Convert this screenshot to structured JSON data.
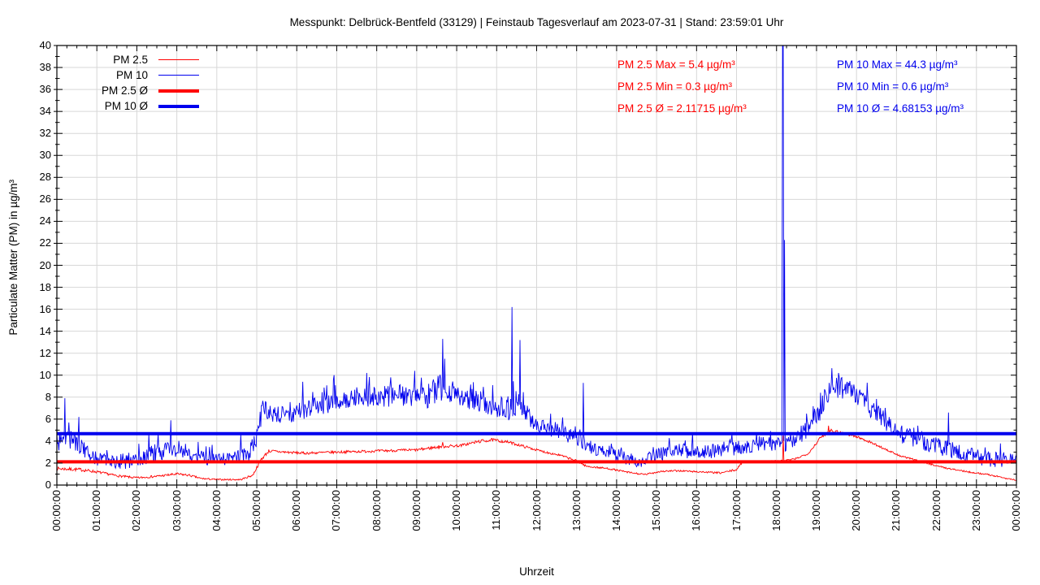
{
  "title": "Messpunkt: Delbrück-Bentfeld (33129) | Feinstaub Tagesverlauf am 2023-07-31 | Stand: 23:59:01 Uhr",
  "legend": [
    {
      "label": "PM 2.5",
      "color": "#ff0000",
      "thickness": 1.5
    },
    {
      "label": "PM 10",
      "color": "#0000ee",
      "thickness": 1.5
    },
    {
      "label": "PM 2.5 Ø",
      "color": "#ff0000",
      "thickness": 4
    },
    {
      "label": "PM 10 Ø",
      "color": "#0000ee",
      "thickness": 4
    }
  ],
  "stats_left": {
    "color": "#ff0000",
    "lines": [
      "PM 2.5 Max = 5.4 µg/m³",
      "PM 2.5 Min = 0.3 µg/m³",
      "PM 2.5 Ø = 2.11715 µg/m³"
    ]
  },
  "stats_right": {
    "color": "#0000ee",
    "lines": [
      "PM 10 Max = 44.3 µg/m³",
      "PM 10 Min = 0.6 µg/m³",
      "PM 10 Ø = 4.68153 µg/m³"
    ]
  },
  "chart_data": {
    "type": "line",
    "title": "Messpunkt: Delbrück-Bentfeld (33129) | Feinstaub Tagesverlauf am 2023-07-31 | Stand: 23:59:01 Uhr",
    "xlabel": "Uhrzeit",
    "ylabel": "Particulate Matter (PM) in µg/m³",
    "ylim": [
      0,
      40
    ],
    "ytick_step": 2,
    "ytick_values": [
      0,
      2,
      4,
      6,
      8,
      10,
      12,
      14,
      16,
      18,
      20,
      22,
      24,
      26,
      28,
      30,
      32,
      34,
      36,
      38,
      40
    ],
    "xlim_hours": [
      0,
      24
    ],
    "xtick_labels": [
      "00:00:00",
      "01:00:00",
      "02:00:00",
      "03:00:00",
      "04:00:00",
      "05:00:00",
      "06:00:00",
      "07:00:00",
      "08:00:00",
      "09:00:00",
      "10:00:00",
      "11:00:00",
      "12:00:00",
      "13:00:00",
      "14:00:00",
      "15:00:00",
      "16:00:00",
      "17:00:00",
      "18:00:00",
      "19:00:00",
      "20:00:00",
      "21:00:00",
      "22:00:00",
      "23:00:00",
      "00:00:00"
    ],
    "grid": true,
    "legend_position": "top-left",
    "stats": {
      "pm25": {
        "max": 5.4,
        "min": 0.3,
        "avg": 2.11715,
        "unit": "µg/m³"
      },
      "pm10": {
        "max": 44.3,
        "min": 0.6,
        "avg": 4.68153,
        "unit": "µg/m³"
      }
    },
    "averages": [
      {
        "name": "PM 2.5 Ø",
        "value": 2.11715,
        "color": "#ff0000"
      },
      {
        "name": "PM 10 Ø",
        "value": 4.68153,
        "color": "#0000ee"
      }
    ],
    "series": [
      {
        "name": "PM 2.5",
        "color": "#ff0000",
        "style": "noisy-minute-data",
        "keyframes_hour_base_noise": [
          [
            0.0,
            1.5,
            0.15
          ],
          [
            0.6,
            1.4,
            0.15
          ],
          [
            1.0,
            1.2,
            0.12
          ],
          [
            1.5,
            0.85,
            0.1
          ],
          [
            2.0,
            0.65,
            0.1
          ],
          [
            2.5,
            0.8,
            0.1
          ],
          [
            3.0,
            1.0,
            0.12
          ],
          [
            3.3,
            0.9,
            0.1
          ],
          [
            3.6,
            0.6,
            0.08
          ],
          [
            4.0,
            0.5,
            0.07
          ],
          [
            4.6,
            0.5,
            0.07
          ],
          [
            4.9,
            0.9,
            0.1
          ],
          [
            5.1,
            2.3,
            0.15
          ],
          [
            5.3,
            3.1,
            0.15
          ],
          [
            5.7,
            3.0,
            0.12
          ],
          [
            6.2,
            2.9,
            0.12
          ],
          [
            7.0,
            3.0,
            0.12
          ],
          [
            8.0,
            3.1,
            0.12
          ],
          [
            9.0,
            3.2,
            0.12
          ],
          [
            9.6,
            3.5,
            0.15
          ],
          [
            10.1,
            3.6,
            0.12
          ],
          [
            10.6,
            4.0,
            0.15
          ],
          [
            10.9,
            4.1,
            0.15
          ],
          [
            11.3,
            3.9,
            0.12
          ],
          [
            11.7,
            3.5,
            0.12
          ],
          [
            12.1,
            3.1,
            0.1
          ],
          [
            12.6,
            2.7,
            0.1
          ],
          [
            13.0,
            2.2,
            0.1
          ],
          [
            13.25,
            1.7,
            0.08
          ],
          [
            13.8,
            1.5,
            0.08
          ],
          [
            14.3,
            1.15,
            0.08
          ],
          [
            14.7,
            0.95,
            0.08
          ],
          [
            15.1,
            1.25,
            0.08
          ],
          [
            15.6,
            1.3,
            0.08
          ],
          [
            16.1,
            1.2,
            0.08
          ],
          [
            16.6,
            1.1,
            0.08
          ],
          [
            17.0,
            1.4,
            0.1
          ],
          [
            17.15,
            2.1,
            0.08
          ],
          [
            17.6,
            2.15,
            0.07
          ],
          [
            18.1,
            2.2,
            0.07
          ],
          [
            18.45,
            2.35,
            0.08
          ],
          [
            18.8,
            2.9,
            0.1
          ],
          [
            19.1,
            4.3,
            0.15
          ],
          [
            19.35,
            5.0,
            0.15
          ],
          [
            19.7,
            4.7,
            0.12
          ],
          [
            20.0,
            4.4,
            0.12
          ],
          [
            20.35,
            3.9,
            0.1
          ],
          [
            20.7,
            3.3,
            0.1
          ],
          [
            21.05,
            2.7,
            0.08
          ],
          [
            21.4,
            2.35,
            0.08
          ],
          [
            21.8,
            1.95,
            0.08
          ],
          [
            22.3,
            1.5,
            0.07
          ],
          [
            22.8,
            1.2,
            0.07
          ],
          [
            23.3,
            0.95,
            0.07
          ],
          [
            23.7,
            0.65,
            0.07
          ],
          [
            24.0,
            0.45,
            0.06
          ]
        ],
        "spikes_hour_value": [
          [
            9.65,
            3.9
          ],
          [
            18.16,
            4.5
          ],
          [
            19.3,
            5.4
          ]
        ]
      },
      {
        "name": "PM 10",
        "color": "#0000ee",
        "style": "noisy-minute-data",
        "keyframes_hour_base_noise": [
          [
            0.0,
            3.8,
            0.8
          ],
          [
            0.4,
            4.2,
            0.9
          ],
          [
            0.7,
            3.2,
            0.7
          ],
          [
            1.0,
            2.4,
            0.6
          ],
          [
            1.6,
            2.0,
            0.6
          ],
          [
            2.1,
            2.4,
            0.7
          ],
          [
            2.5,
            3.0,
            0.8
          ],
          [
            3.0,
            3.3,
            0.8
          ],
          [
            3.4,
            2.8,
            0.7
          ],
          [
            3.8,
            2.4,
            0.6
          ],
          [
            4.3,
            2.4,
            0.6
          ],
          [
            4.8,
            2.8,
            0.7
          ],
          [
            5.0,
            4.5,
            1.0
          ],
          [
            5.15,
            7.0,
            0.9
          ],
          [
            5.4,
            6.4,
            0.7
          ],
          [
            5.8,
            6.4,
            0.8
          ],
          [
            6.3,
            7.0,
            0.9
          ],
          [
            6.8,
            7.3,
            1.0
          ],
          [
            7.3,
            7.9,
            0.9
          ],
          [
            7.8,
            8.1,
            1.0
          ],
          [
            8.3,
            8.1,
            1.0
          ],
          [
            8.8,
            8.2,
            1.0
          ],
          [
            9.3,
            8.1,
            1.1
          ],
          [
            9.6,
            9.0,
            1.4
          ],
          [
            9.8,
            8.6,
            1.1
          ],
          [
            10.2,
            8.0,
            1.0
          ],
          [
            10.6,
            7.6,
            1.0
          ],
          [
            11.0,
            7.0,
            0.9
          ],
          [
            11.3,
            7.0,
            1.2
          ],
          [
            11.5,
            7.8,
            1.4
          ],
          [
            11.8,
            6.2,
            0.8
          ],
          [
            12.1,
            5.3,
            0.7
          ],
          [
            12.5,
            5.0,
            0.8
          ],
          [
            12.9,
            4.4,
            0.7
          ],
          [
            13.1,
            4.2,
            0.8
          ],
          [
            13.4,
            3.3,
            0.6
          ],
          [
            13.9,
            2.8,
            0.6
          ],
          [
            14.3,
            2.4,
            0.6
          ],
          [
            14.6,
            2.1,
            0.5
          ],
          [
            15.0,
            2.8,
            0.6
          ],
          [
            15.6,
            3.1,
            0.7
          ],
          [
            16.1,
            3.0,
            0.7
          ],
          [
            16.6,
            3.2,
            0.7
          ],
          [
            17.1,
            3.5,
            0.7
          ],
          [
            17.6,
            3.8,
            0.7
          ],
          [
            18.0,
            3.6,
            0.7
          ],
          [
            18.35,
            3.9,
            0.7
          ],
          [
            18.7,
            4.8,
            0.9
          ],
          [
            19.0,
            6.2,
            1.0
          ],
          [
            19.3,
            8.6,
            1.0
          ],
          [
            19.6,
            8.9,
            1.0
          ],
          [
            19.95,
            8.3,
            1.0
          ],
          [
            20.3,
            7.2,
            0.9
          ],
          [
            20.6,
            6.2,
            0.9
          ],
          [
            21.0,
            4.8,
            0.8
          ],
          [
            21.5,
            4.1,
            0.8
          ],
          [
            22.0,
            3.6,
            0.8
          ],
          [
            22.5,
            3.1,
            0.8
          ],
          [
            23.0,
            2.6,
            0.7
          ],
          [
            23.5,
            2.2,
            0.8
          ],
          [
            24.0,
            2.4,
            0.6
          ]
        ],
        "spikes_hour_value": [
          [
            0.2,
            7.9
          ],
          [
            0.55,
            6.2
          ],
          [
            2.3,
            4.7
          ],
          [
            2.85,
            5.9
          ],
          [
            4.6,
            4.6
          ],
          [
            6.15,
            9.4
          ],
          [
            6.93,
            10.0
          ],
          [
            7.75,
            10.2
          ],
          [
            8.35,
            9.8
          ],
          [
            8.95,
            10.4
          ],
          [
            9.65,
            13.3
          ],
          [
            9.7,
            11.5
          ],
          [
            11.38,
            16.2
          ],
          [
            11.58,
            13.2
          ],
          [
            12.35,
            6.5
          ],
          [
            13.17,
            9.3
          ],
          [
            15.9,
            4.8
          ],
          [
            17.5,
            4.8
          ],
          [
            18.15,
            44.3
          ],
          [
            18.17,
            44.3
          ],
          [
            18.2,
            22.3
          ],
          [
            18.75,
            6.5
          ],
          [
            19.55,
            10.2
          ],
          [
            22.3,
            6.6
          ]
        ]
      }
    ]
  }
}
